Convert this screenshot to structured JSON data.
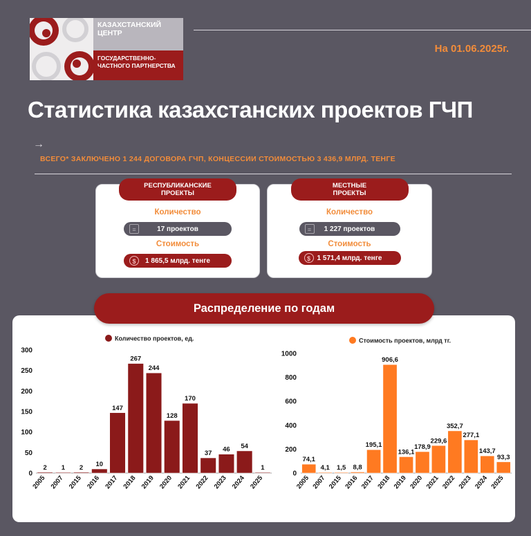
{
  "logo": {
    "line1": "КАЗАХСТАНСКИЙ",
    "line2": "ЦЕНТР",
    "line3": "ГОСУДАРСТВЕННО-",
    "line4": "ЧАСТНОГО ПАРТНЕРСТВА"
  },
  "date": "На 01.06.2025г.",
  "title": "Статистика казахстанских проектов ГЧП",
  "arrow": "→",
  "summary": "ВСЕГО* ЗАКЛЮЧЕНО 1 244 ДОГОВОРА ГЧП, КОНЦЕССИИ  СТОИМОСТЬЮ 3 436,9 МЛРД. ТЕНГЕ",
  "cards": [
    {
      "tag": "РЕСПУБЛИКАНСКИЕ\nПРОЕКТЫ",
      "count_label": "Количество",
      "count_value": "17 проектов",
      "cost_label": "Стоимость",
      "cost_value": "1 865,5 млрд. тенге"
    },
    {
      "tag": "МЕСТНЫЕ\nПРОЕКТЫ",
      "count_label": "Количество",
      "count_value": "1 227 проектов",
      "cost_label": "Стоимость",
      "cost_value": "1 571,4 млрд. тенге"
    }
  ],
  "icons": {
    "document": "document-icon",
    "currency": "dollar-coin-icon"
  },
  "distribution_title": "Распределение по годам",
  "colors": {
    "background": "#5a5762",
    "brand_red": "#9b1c1c",
    "accent_orange": "#f28c3a",
    "count_bar": "#8b1a1a",
    "cost_bar": "#ff7a21"
  },
  "chart_data": [
    {
      "type": "bar",
      "legend": "Количество проектов, ед.",
      "categories": [
        "2005",
        "2007",
        "2015",
        "2016",
        "2017",
        "2018",
        "2019",
        "2020",
        "2021",
        "2022",
        "2023",
        "2024",
        "2025"
      ],
      "values": [
        2,
        1,
        2,
        10,
        147,
        267,
        244,
        128,
        170,
        37,
        46,
        54,
        1
      ],
      "labels": [
        "2",
        "1",
        "2",
        "10",
        "147",
        "267",
        "244",
        "128",
        "170",
        "37",
        "46",
        "54",
        "1"
      ],
      "yticks": [
        0,
        50,
        100,
        150,
        200,
        250,
        300
      ],
      "ylim": [
        0,
        300
      ],
      "color": "#8b1a1a"
    },
    {
      "type": "bar",
      "legend": "Стоимость проектов, млрд тг.",
      "categories": [
        "2005",
        "2007",
        "2015",
        "2016",
        "2017",
        "2018",
        "2019",
        "2020",
        "2021",
        "2022",
        "2023",
        "2024",
        "2025"
      ],
      "values": [
        74.1,
        4.1,
        1.5,
        8.8,
        195.1,
        906.6,
        136.1,
        178.9,
        229.6,
        352.7,
        277.1,
        143.7,
        93.3
      ],
      "labels": [
        "74,1",
        "4,1",
        "1,5",
        "8,8",
        "195,1",
        "906,6",
        "136,1",
        "178,9",
        "229,6",
        "352,7",
        "277,1",
        "143,7",
        "93,3"
      ],
      "yticks": [
        0,
        200,
        400,
        600,
        800,
        1000
      ],
      "ylim": [
        0,
        1000
      ],
      "color": "#ff7a21"
    }
  ]
}
